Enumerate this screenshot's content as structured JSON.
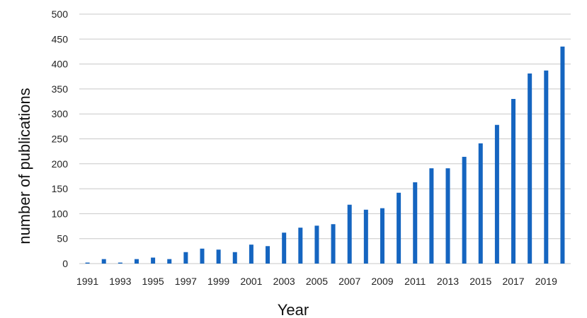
{
  "chart_data": {
    "type": "bar",
    "xlabel": "Year",
    "ylabel": "number of publications",
    "ylim": [
      0,
      500
    ],
    "yticks": [
      0,
      50,
      100,
      150,
      200,
      250,
      300,
      350,
      400,
      450,
      500
    ],
    "grid": true,
    "bar_color": "#1565c0",
    "categories": [
      1991,
      1992,
      1993,
      1994,
      1995,
      1996,
      1997,
      1998,
      1999,
      2000,
      2001,
      2002,
      2003,
      2004,
      2005,
      2006,
      2007,
      2008,
      2009,
      2010,
      2011,
      2012,
      2013,
      2014,
      2015,
      2016,
      2017,
      2018,
      2019,
      2020
    ],
    "x_tick_labels": [
      "1991",
      "1993",
      "1995",
      "1997",
      "1999",
      "2001",
      "2003",
      "2005",
      "2007",
      "2009",
      "2011",
      "2013",
      "2015",
      "2017",
      "2019"
    ],
    "values": [
      2,
      9,
      2,
      9,
      12,
      9,
      23,
      30,
      28,
      23,
      38,
      35,
      62,
      72,
      76,
      79,
      118,
      108,
      111,
      142,
      163,
      191,
      191,
      214,
      241,
      278,
      330,
      381,
      387,
      435
    ]
  }
}
